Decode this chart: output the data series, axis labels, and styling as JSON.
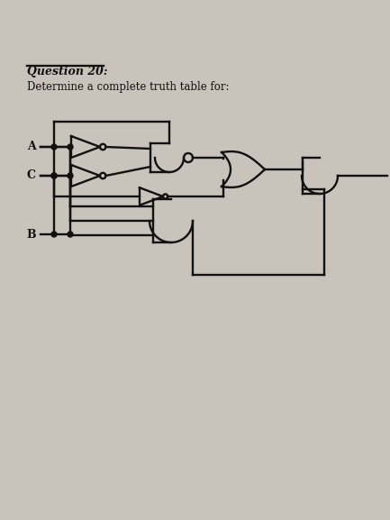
{
  "title_line1": "Question 20:",
  "title_line2": "Determine a complete truth table for:",
  "bg_color": "#c8c4bc",
  "line_color": "#111111",
  "lw": 1.7,
  "label_A": "A",
  "label_C": "C",
  "label_B": "B",
  "fig_w": 4.33,
  "fig_h": 5.77,
  "dpi": 100
}
